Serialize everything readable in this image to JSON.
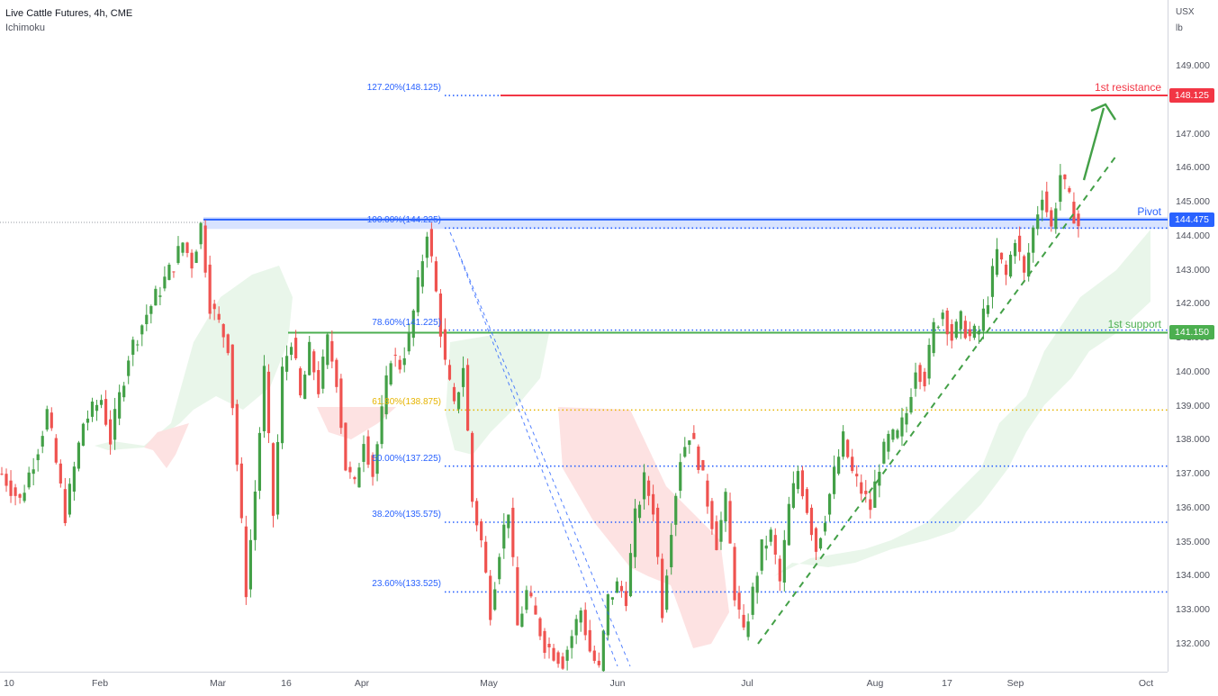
{
  "header": {
    "title": "Live Cattle Futures, 4h, CME",
    "indicator": "Ichimoku"
  },
  "axis": {
    "currency": "USX",
    "unit": "lb"
  },
  "chart_data": {
    "type": "candlestick",
    "instrument": "Live Cattle Futures",
    "timeframe": "4h",
    "exchange": "CME",
    "y_ticks": [
      "132.000",
      "133.000",
      "134.000",
      "135.000",
      "136.000",
      "137.000",
      "138.000",
      "139.000",
      "140.000",
      "141.000",
      "142.000",
      "143.000",
      "144.000",
      "145.000",
      "146.000",
      "147.000",
      "148.000",
      "149.000"
    ],
    "ylim": [
      131.2,
      150.2
    ],
    "x_ticks": [
      "10",
      "Feb",
      "Mar",
      "16",
      "Apr",
      "May",
      "Jun",
      "Jul",
      "Aug",
      "17",
      "Sep",
      "Oct"
    ],
    "fib_levels": [
      {
        "label": "127.20%(148.125)",
        "value": 148.125
      },
      {
        "label": "100.00%(144.225)",
        "value": 144.225
      },
      {
        "label": "78.60%(141.225)",
        "value": 141.225
      },
      {
        "label": "61.80%(138.875)",
        "value": 138.875
      },
      {
        "label": "50.00%(137.225)",
        "value": 137.225
      },
      {
        "label": "38.20%(135.575)",
        "value": 135.575
      },
      {
        "label": "23.60%(133.525)",
        "value": 133.525
      }
    ],
    "levels": [
      {
        "name": "1st resistance",
        "value": 148.125,
        "tag": "148.125",
        "color": "#f23645"
      },
      {
        "name": "Pivot",
        "value": 144.475,
        "tag": "144.475",
        "color": "#2962ff"
      },
      {
        "name": "1st support",
        "value": 141.15,
        "tag": "141.150",
        "color": "#4caf50"
      }
    ],
    "colors": {
      "up": "#26a69a",
      "up_green": "#43a047",
      "down": "#ef5350",
      "cloud_bull": "#e8f5e9",
      "cloud_bear": "#fde0e0"
    },
    "price_path": [
      [
        0,
        137.0
      ],
      [
        2,
        136.2
      ],
      [
        4,
        137.8
      ],
      [
        5,
        138.8
      ],
      [
        7,
        135.8
      ],
      [
        9,
        138.5
      ],
      [
        11,
        139.2
      ],
      [
        12,
        138.0
      ],
      [
        14,
        140.5
      ],
      [
        16,
        141.7
      ],
      [
        17,
        142.2
      ],
      [
        19,
        143.2
      ],
      [
        20,
        143.8
      ],
      [
        21,
        143.2
      ],
      [
        22,
        144.3
      ],
      [
        23,
        142.0
      ],
      [
        25,
        140.8
      ],
      [
        26,
        137.3
      ],
      [
        27,
        133.6
      ],
      [
        28,
        136.5
      ],
      [
        29,
        140.0
      ],
      [
        30,
        135.8
      ],
      [
        31,
        140.0
      ],
      [
        32,
        141.0
      ],
      [
        33,
        139.2
      ],
      [
        34,
        140.6
      ],
      [
        35,
        139.5
      ],
      [
        36,
        140.9
      ],
      [
        37,
        139.8
      ],
      [
        38,
        137.2
      ],
      [
        39,
        136.6
      ],
      [
        40,
        138.1
      ],
      [
        41,
        137.0
      ],
      [
        43,
        140.5
      ],
      [
        44,
        140.2
      ],
      [
        45,
        141.0
      ],
      [
        46,
        142.5
      ],
      [
        47,
        144.2
      ],
      [
        48,
        142.3
      ],
      [
        49,
        140.2
      ],
      [
        50,
        138.9
      ],
      [
        51,
        140.2
      ],
      [
        52,
        136.2
      ],
      [
        53,
        135.0
      ],
      [
        54,
        133.0
      ],
      [
        55,
        134.8
      ],
      [
        56,
        136.0
      ],
      [
        57,
        132.5
      ],
      [
        58,
        133.5
      ],
      [
        60,
        132.0
      ],
      [
        62,
        131.5
      ],
      [
        64,
        133.0
      ],
      [
        65,
        131.8
      ],
      [
        66,
        131.2
      ],
      [
        67,
        133.3
      ],
      [
        68,
        133.7
      ],
      [
        69,
        133.4
      ],
      [
        70,
        135.7
      ],
      [
        71,
        136.8
      ],
      [
        72,
        136.0
      ],
      [
        73,
        133.0
      ],
      [
        74,
        135.5
      ],
      [
        75,
        137.5
      ],
      [
        76,
        138.2
      ],
      [
        77,
        137.4
      ],
      [
        78,
        136.2
      ],
      [
        79,
        135.0
      ],
      [
        80,
        136.2
      ],
      [
        81,
        133.5
      ],
      [
        82,
        132.2
      ],
      [
        83,
        133.5
      ],
      [
        84,
        134.8
      ],
      [
        85,
        135.2
      ],
      [
        86,
        133.8
      ],
      [
        87,
        136.0
      ],
      [
        88,
        137.1
      ],
      [
        89,
        136.0
      ],
      [
        90,
        134.8
      ],
      [
        91,
        135.8
      ],
      [
        92,
        137.0
      ],
      [
        93,
        138.0
      ],
      [
        94,
        137.0
      ],
      [
        95,
        136.5
      ],
      [
        96,
        136.0
      ],
      [
        97,
        137.3
      ],
      [
        98,
        138.0
      ],
      [
        99,
        138.1
      ],
      [
        100,
        138.8
      ],
      [
        101,
        140.2
      ],
      [
        102,
        139.8
      ],
      [
        103,
        141.3
      ],
      [
        104,
        141.8
      ],
      [
        105,
        141.0
      ],
      [
        106,
        141.5
      ],
      [
        107,
        141.0
      ],
      [
        108,
        141.2
      ],
      [
        109,
        142.2
      ],
      [
        110,
        143.5
      ],
      [
        111,
        142.8
      ],
      [
        112,
        144.0
      ],
      [
        113,
        142.8
      ],
      [
        114,
        144.2
      ],
      [
        115,
        145.3
      ],
      [
        116,
        144.2
      ],
      [
        117,
        145.8
      ],
      [
        118,
        145.0
      ],
      [
        119,
        144.3
      ]
    ]
  }
}
